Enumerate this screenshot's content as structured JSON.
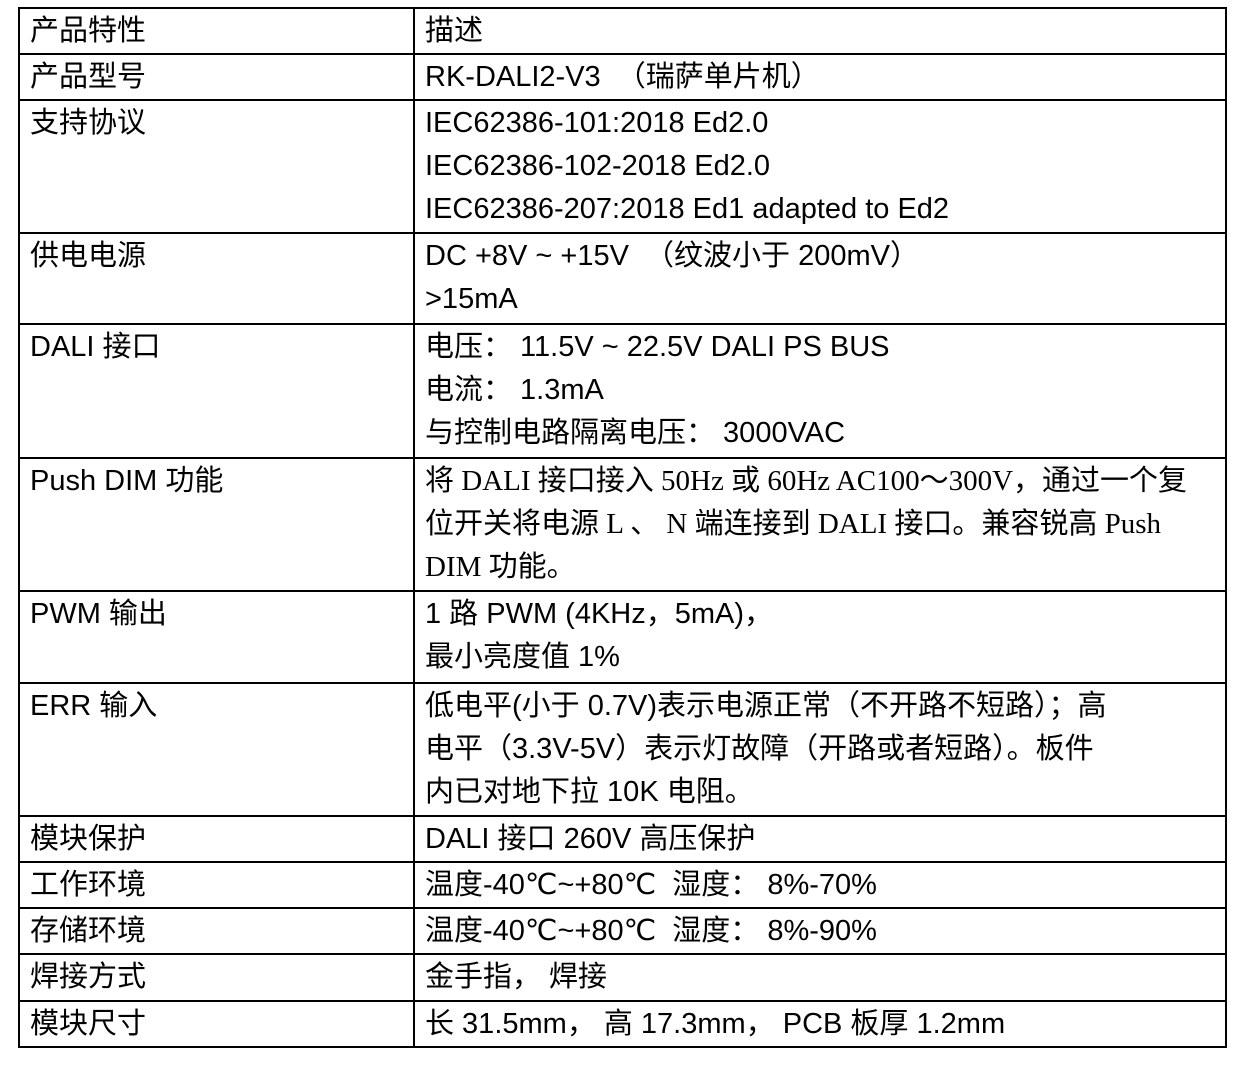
{
  "page": {
    "background_color": "#ffffff",
    "border_color": "#000000",
    "text_color": "#000000"
  },
  "table": {
    "header": {
      "col1": "产品特性",
      "col2": "描述"
    },
    "rows": [
      {
        "name": "product-model",
        "label": "产品型号",
        "lines": [
          "RK-DALI2-V3  （瑞萨单片机）"
        ]
      },
      {
        "name": "supported-protocols",
        "label": "支持协议",
        "lines": [
          "IEC62386-101:2018 Ed2.0",
          "IEC62386-102-2018 Ed2.0",
          "IEC62386-207:2018 Ed1 adapted to Ed2"
        ]
      },
      {
        "name": "power-supply",
        "label": "供电电源",
        "lines": [
          "DC +8V ~ +15V  （纹波小于 200mV）",
          ">15mA"
        ]
      },
      {
        "name": "dali-interface",
        "label": "DALI 接口",
        "lines": [
          "电压： 11.5V ~ 22.5V DALI PS BUS",
          "电流： 1.3mA",
          "与控制电路隔离电压： 3000VAC"
        ]
      },
      {
        "name": "push-dim-function",
        "label": "Push DIM 功能",
        "lines": [
          "将 DALI 接口接入 50Hz 或 60Hz AC100～300V，通过一个复",
          "位开关将电源 L 、 N 端连接到 DALI 接口。兼容锐高 Push",
          "DIM 功能。"
        ]
      },
      {
        "name": "pwm-output",
        "label": "PWM 输出",
        "lines": [
          "1 路 PWM (4KHz，5mA)，",
          "最小亮度值 1%"
        ]
      },
      {
        "name": "err-input",
        "label": "ERR 输入",
        "lines": [
          "低电平(小于 0.7V)表示电源正常（不开路不短路）；高",
          "电平（3.3V-5V）表示灯故障（开路或者短路）。板件",
          "内已对地下拉 10K 电阻。"
        ]
      },
      {
        "name": "module-protection",
        "label": "模块保护",
        "lines": [
          "DALI 接口 260V 高压保护"
        ]
      },
      {
        "name": "operating-environment",
        "label": "工作环境",
        "lines": [
          "温度-40℃~+80℃  湿度： 8%-70%"
        ]
      },
      {
        "name": "storage-environment",
        "label": "存储环境",
        "lines": [
          "温度-40℃~+80℃  湿度： 8%-90%"
        ]
      },
      {
        "name": "soldering-method",
        "label": "焊接方式",
        "lines": [
          "金手指， 焊接"
        ]
      },
      {
        "name": "module-dimensions",
        "label": "模块尺寸",
        "lines": [
          "长 31.5mm， 高 17.3mm， PCB 板厚 1.2mm"
        ]
      }
    ]
  }
}
